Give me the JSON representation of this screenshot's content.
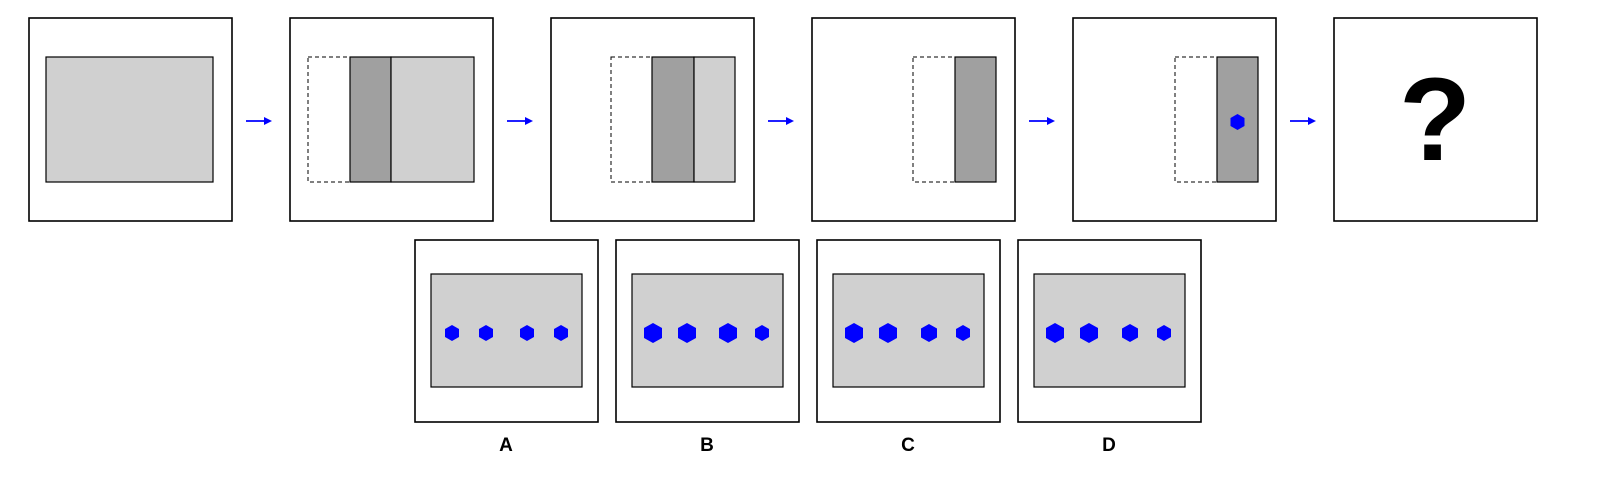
{
  "colors": {
    "sheet": "#d0d0d0",
    "fold": "#a0a0a0",
    "arrow": "#0000ff",
    "hole": "#0000ff",
    "frame": "#000000"
  },
  "question_mark": "?",
  "steps": [
    {
      "name": "unfolded-sheet"
    },
    {
      "name": "first-fold"
    },
    {
      "name": "second-fold"
    },
    {
      "name": "third-fold"
    },
    {
      "name": "punched-hole"
    }
  ],
  "options": [
    {
      "label": "A",
      "hole_sizes": [
        "small",
        "small",
        "small",
        "small"
      ]
    },
    {
      "label": "B",
      "hole_sizes": [
        "large",
        "large",
        "large",
        "small"
      ]
    },
    {
      "label": "C",
      "hole_sizes": [
        "large",
        "large",
        "medium",
        "small"
      ]
    },
    {
      "label": "D",
      "hole_sizes": [
        "large",
        "large",
        "medium",
        "small"
      ]
    }
  ]
}
